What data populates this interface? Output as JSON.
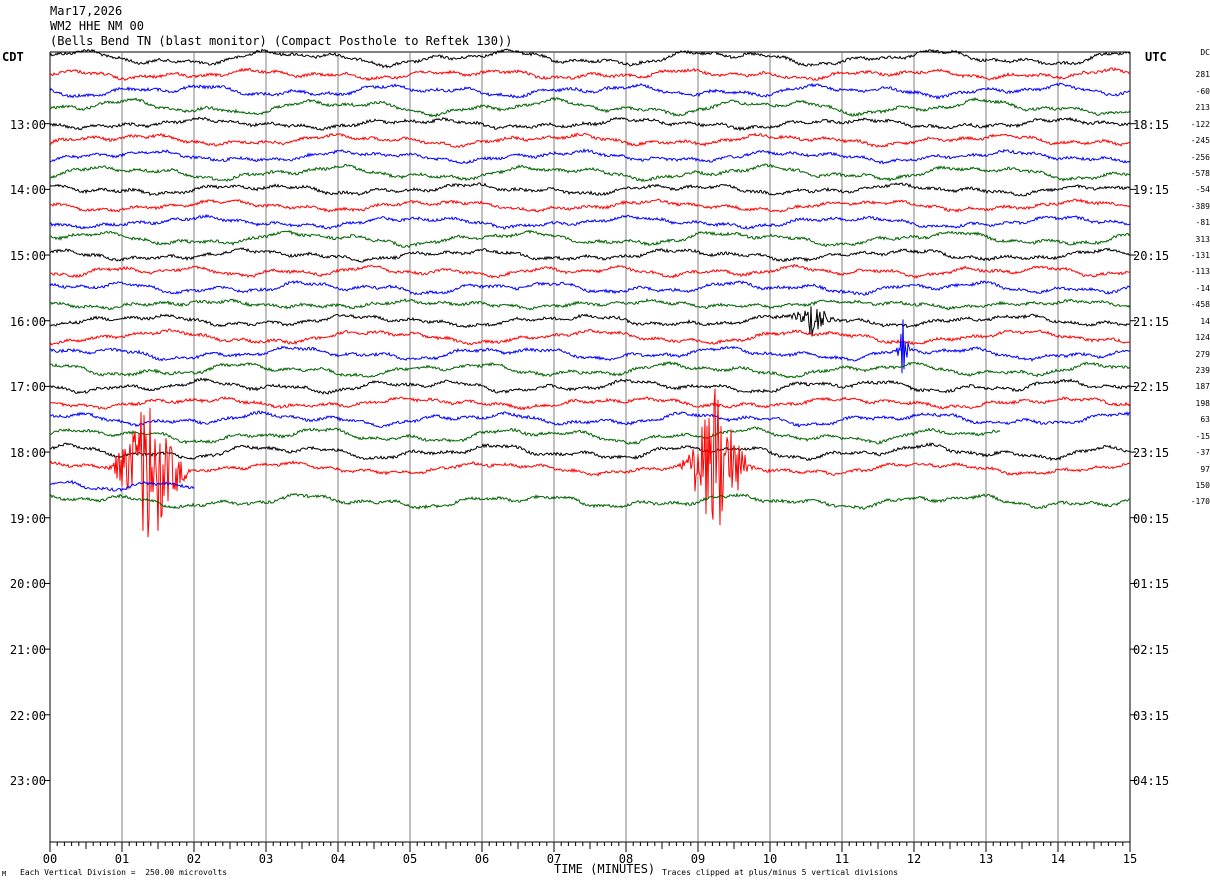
{
  "header": {
    "date": "Mar17,2026",
    "channel": "WM2 HHE NM 00",
    "station": "(Bells Bend TN (blast monitor) (Compact Posthole to Reftek 130))"
  },
  "labels": {
    "left_zone": "CDT",
    "right_zone": "UTC",
    "dc": "DC"
  },
  "footer": {
    "scale": "Each Vertical Division =  250.00 microvolts",
    "clip": "Traces clipped at plus/minus 5 vertical divisions",
    "xlabel": "TIME (MINUTES)",
    "corner_mark": "M"
  },
  "colors": {
    "black": "#000000",
    "red": "#ff0000",
    "blue": "#0000ff",
    "green": "#006400",
    "grid": "#808080"
  },
  "chart_data": {
    "type": "line",
    "title": "WM2 HHE NM 00",
    "xlabel": "TIME (MINUTES)",
    "x_range": [
      0,
      15
    ],
    "x_ticks": [
      "00",
      "01",
      "02",
      "03",
      "04",
      "05",
      "06",
      "07",
      "08",
      "09",
      "10",
      "11",
      "12",
      "13",
      "14",
      "15"
    ],
    "time_labels_left": [
      "13:00",
      "14:00",
      "15:00",
      "16:00",
      "17:00",
      "18:00",
      "19:00",
      "20:00",
      "21:00",
      "22:00",
      "23:00"
    ],
    "time_labels_right": [
      "18:15",
      "19:15",
      "20:15",
      "21:15",
      "22:15",
      "23:15",
      "00:15",
      "01:15",
      "02:15",
      "03:15",
      "04:15"
    ],
    "trace_count": 28,
    "dc_offsets": [
      "281",
      "-60",
      "213",
      "-122",
      "-245",
      "-256",
      "-578",
      "-54",
      "-389",
      "-81",
      "313",
      "-131",
      "-113",
      "-14",
      "-458",
      "14",
      "124",
      "279",
      "239",
      "187",
      "198",
      "63",
      "-15",
      "-37",
      "97",
      "150",
      "-170"
    ],
    "trace_colors": [
      "black",
      "red",
      "blue",
      "green"
    ],
    "events": [
      {
        "trace": 25,
        "minute_start": 0.75,
        "minute_end": 2.0,
        "amplitude_divisions": 5
      },
      {
        "trace": 25,
        "minute_start": 8.7,
        "minute_end": 9.8,
        "amplitude_divisions": 5
      },
      {
        "trace": 18,
        "minute_start": 11.75,
        "minute_end": 11.95,
        "amplitude_divisions": 3
      },
      {
        "trace": 16,
        "minute_start": 10.2,
        "minute_end": 11.0,
        "amplitude_divisions": 1
      }
    ],
    "partial_traces": [
      {
        "trace": 23,
        "minute_end": 13.2
      },
      {
        "trace": 26,
        "minute_end": 2.0
      }
    ],
    "scale_microvolts_per_division": 250.0,
    "clip_divisions": 5
  }
}
